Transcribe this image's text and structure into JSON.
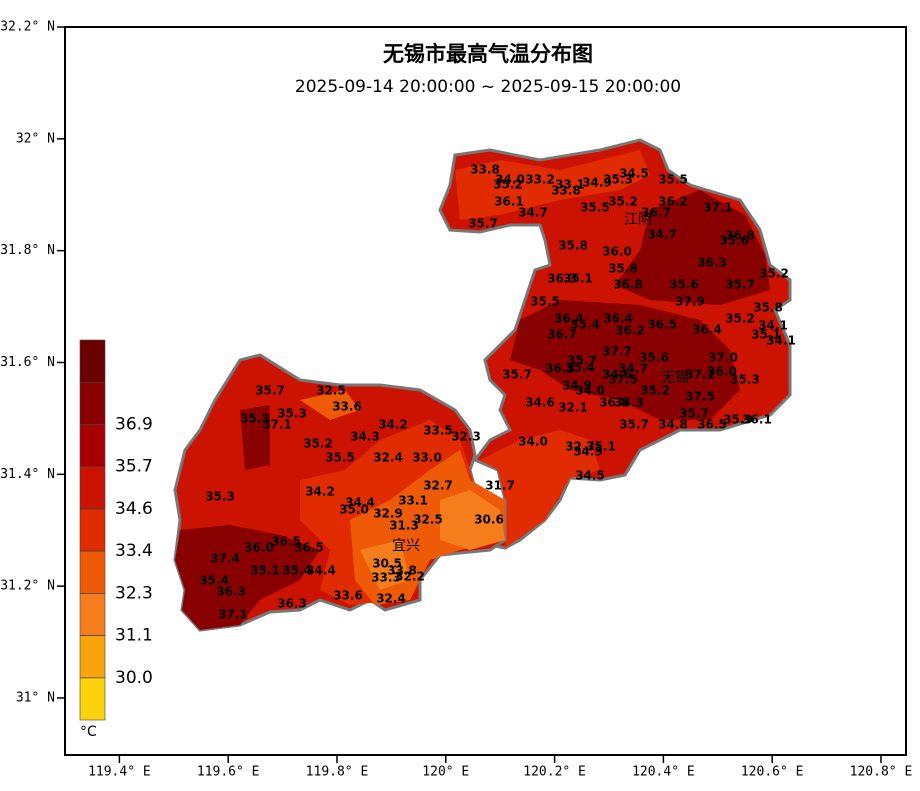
{
  "chart_data": {
    "type": "station-map",
    "title": "无锡市最高气温分布图",
    "subtitle": "2025-09-14 20:00:00 ~ 2025-09-15 20:00:00",
    "xlim": [
      119.3,
      120.846
    ],
    "ylim": [
      30.898,
      32.2
    ],
    "xticks": [
      {
        "value": 119.4,
        "label": "119.4° E"
      },
      {
        "value": 119.6,
        "label": "119.6° E"
      },
      {
        "value": 119.8,
        "label": "119.8° E"
      },
      {
        "value": 120,
        "label": "120° E"
      },
      {
        "value": 120.2,
        "label": "120.2° E"
      },
      {
        "value": 120.4,
        "label": "120.4° E"
      },
      {
        "value": 120.6,
        "label": "120.6° E"
      },
      {
        "value": 120.8,
        "label": "120.8° E"
      }
    ],
    "yticks": [
      {
        "value": 31,
        "label": "31° N"
      },
      {
        "value": 31.2,
        "label": "31.2° N"
      },
      {
        "value": 31.4,
        "label": "31.4° N"
      },
      {
        "value": 31.6,
        "label": "31.6° N"
      },
      {
        "value": 31.8,
        "label": "31.8° N"
      },
      {
        "value": 32,
        "label": "32° N"
      },
      {
        "value": 32.2,
        "label": "32.2° N"
      }
    ],
    "places": [
      "江阴",
      "无锡",
      "宜兴"
    ],
    "colorbar": {
      "colors": [
        "#fcd20a",
        "#f9a40a",
        "#f57d1c",
        "#ef5a06",
        "#e02c00",
        "#cc1200",
        "#a80000",
        "#880000",
        "#6a0000"
      ],
      "ticks": [
        {
          "value": 30,
          "label": "30.0"
        },
        31.1,
        32.3,
        33.4,
        34.6,
        35.7,
        36.9
      ],
      "unit": "°C"
    },
    "stations": {
      "values": [
        33.8,
        34,
        35.2,
        33.2,
        33.1,
        33.8,
        34.9,
        35.3,
        34.5,
        35.5,
        36.1,
        34.7,
        35.5,
        35.2,
        36.7,
        36.2,
        37.1,
        35.7,
        34.7,
        36.8,
        35.6,
        35.8,
        36,
        36.3,
        35.8,
        36.3,
        35.1,
        36.8,
        35.6,
        35.7,
        35.2,
        37.9,
        35.5,
        35.8,
        36.4,
        35.4,
        36.4,
        36.2,
        36.5,
        36.4,
        35.2,
        34.1,
        35.1,
        34.1,
        36.7,
        37.7,
        35.6,
        37,
        35.7,
        36.3,
        35.4,
        34.7,
        34.6,
        37.5,
        37.1,
        36,
        35.3,
        35.7,
        34.9,
        34,
        35.2,
        37.5,
        34.6,
        32.1,
        36.8,
        34.3,
        35.7,
        35.7,
        34.8,
        36.5,
        35.9,
        36.1,
        34,
        32.7,
        35.1,
        34.9,
        34.5,
        35.7,
        32.5,
        33.6,
        35.3,
        35.3,
        37.1,
        34.2,
        33.5,
        32.3,
        34.3,
        35.2,
        35.5,
        32.4,
        33,
        35.3,
        34.2,
        32.7,
        31.7,
        34.4,
        33.1,
        35,
        32.9,
        32.5,
        31.3,
        30.6,
        36.5,
        36,
        36.5,
        37.4,
        30.5,
        35.1,
        35.4,
        34.4,
        33.3,
        33.8,
        32.2,
        35.4,
        36.3,
        33.6,
        32.4,
        36.3,
        37.1
      ],
      "value_labels": [
        "33.8",
        "34.0",
        "35.2",
        "33.2",
        "33.1",
        "33.8",
        "34.9",
        "35.3",
        "34.5",
        "35.5",
        "36.1",
        "34.7",
        "35.5",
        "35.2",
        "36.7",
        "36.2",
        "37.1",
        "35.7",
        "34.7",
        "36.8",
        "35.6",
        "35.8",
        "36.0",
        "36.3",
        "35.8",
        "36.3",
        "35.1",
        "36.8",
        "35.6",
        "35.7",
        "35.2",
        "37.9",
        "35.5",
        "35.8",
        "36.4",
        "35.4",
        "36.4",
        "36.2",
        "36.5",
        "36.4",
        "35.2",
        "34.1",
        "35.1",
        "34.1",
        "36.7",
        "37.7",
        "35.6",
        "37.0",
        "35.7",
        "36.3",
        "35.4",
        "34.7",
        "34.6",
        "37.5",
        "37.1",
        "36.0",
        "35.3",
        "35.7",
        "34.9",
        "34.0",
        "35.2",
        "37.5",
        "34.6",
        "32.1",
        "36.8",
        "34.3",
        "35.7",
        "35.7",
        "34.8",
        "36.5",
        "35.9",
        "36.1",
        "34.0",
        "32.7",
        "35.1",
        "34.9",
        "34.5",
        "35.7",
        "32.5",
        "33.6",
        "35.3",
        "35.3",
        "37.1",
        "34.2",
        "33.5",
        "32.3",
        "34.3",
        "35.2",
        "35.5",
        "32.4",
        "33.0",
        "35.3",
        "34.2",
        "32.7",
        "31.7",
        "34.4",
        "33.1",
        "35.0",
        "32.9",
        "32.5",
        "31.3",
        "30.6",
        "36.5",
        "36.0",
        "36.5",
        "37.4",
        "30.5",
        "35.1",
        "35.4",
        "34.4",
        "33.3",
        "33.8",
        "32.2",
        "35.4",
        "36.3",
        "33.6",
        "32.4",
        "36.3",
        "37.1"
      ]
    }
  }
}
